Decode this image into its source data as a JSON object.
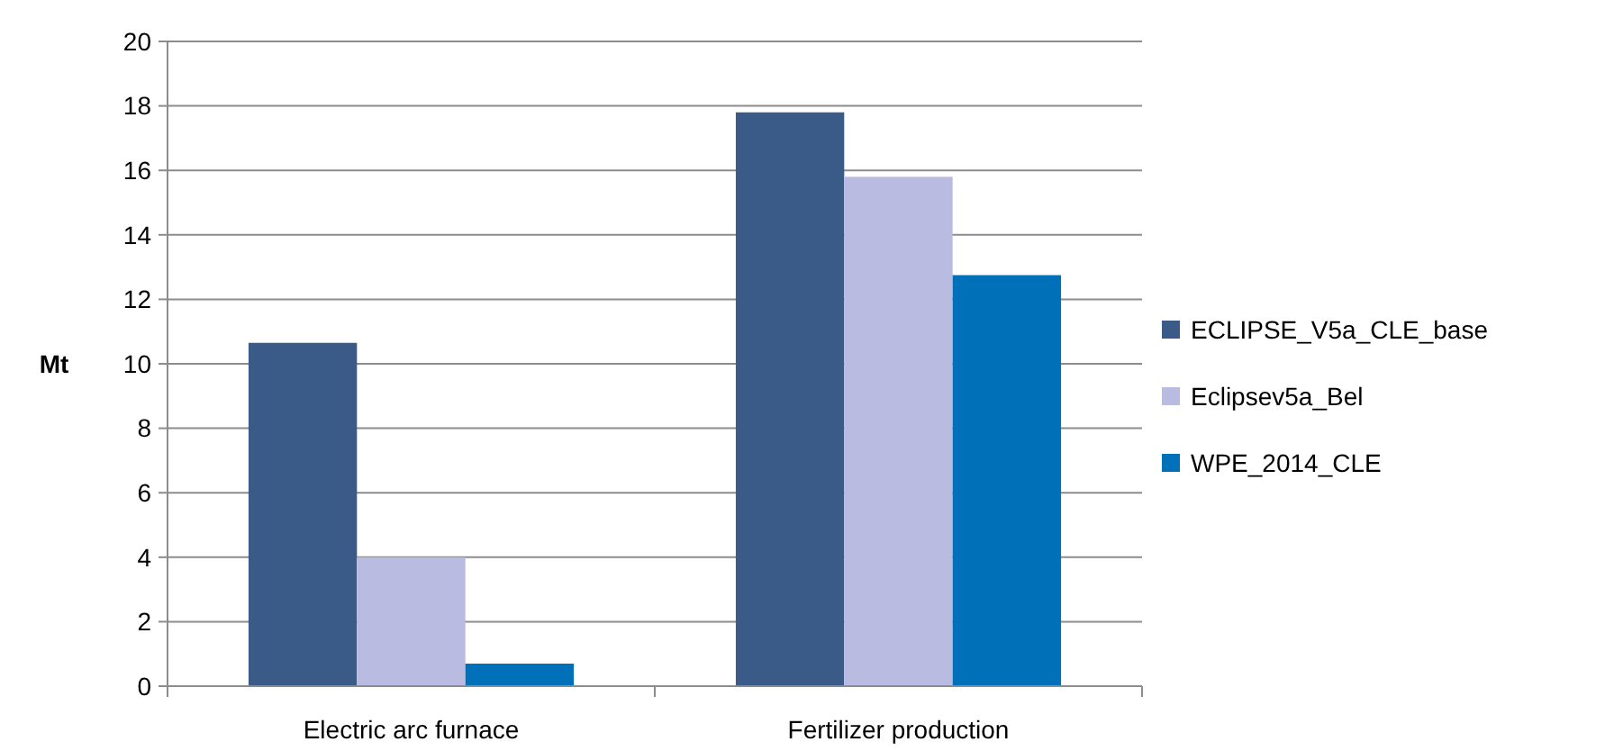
{
  "chart_data": {
    "type": "bar",
    "ylabel": "Mt",
    "categories": [
      "Electric arc furnace",
      "Fertilizer production"
    ],
    "series": [
      {
        "name": "ECLIPSE_V5a_CLE_base",
        "color": "#3a5a88",
        "values": [
          10.65,
          17.8
        ]
      },
      {
        "name": "Eclipsev5a_Bel",
        "color": "#babbe0",
        "values": [
          4.0,
          15.8
        ]
      },
      {
        "name": "WPE_2014_CLE",
        "color": "#0070b8",
        "values": [
          0.7,
          12.75
        ]
      }
    ],
    "ylim": [
      0,
      20
    ],
    "yticks": [
      0,
      2,
      4,
      6,
      8,
      10,
      12,
      14,
      16,
      18,
      20
    ],
    "grid": "y",
    "legend": "right"
  }
}
